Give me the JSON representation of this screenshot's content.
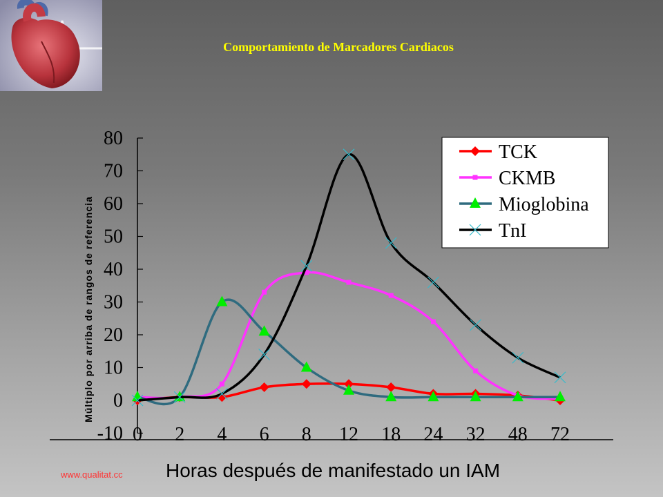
{
  "header": {
    "title": "Comportamiento de Marcadores Cardiacos",
    "logo_icon": "heart-illustration-icon"
  },
  "watermark": "www.qualitat.cc",
  "chart_data": {
    "type": "line",
    "title": "",
    "xlabel": "Horas después de manifestado un IAM",
    "ylabel": "Múltiplo por arriba de rangos de referencia",
    "categories": [
      "0",
      "2",
      "4",
      "6",
      "8",
      "12",
      "18",
      "24",
      "32",
      "48",
      "72"
    ],
    "ylim": [
      -10,
      80
    ],
    "yticks": [
      -10,
      0,
      10,
      20,
      30,
      40,
      50,
      60,
      70,
      80
    ],
    "legend_position": "top-right",
    "grid": false,
    "series": [
      {
        "name": "TCK",
        "color": "#ff0000",
        "marker": "diamond",
        "marker_color": "#ff0000",
        "values": [
          0,
          1,
          1,
          4,
          5,
          5,
          4,
          2,
          2,
          1.5,
          0
        ]
      },
      {
        "name": "CKMB",
        "color": "#ff33ff",
        "marker": "square",
        "marker_color": "#ff33ff",
        "values": [
          1,
          1,
          5,
          33,
          39,
          36,
          32,
          24,
          9,
          1.5,
          0.5
        ]
      },
      {
        "name": "Mioglobina",
        "color": "#2f6b7f",
        "marker": "triangle",
        "marker_color": "#00ee00",
        "values": [
          1,
          1,
          30,
          21,
          10,
          3,
          1,
          1,
          1,
          1,
          1
        ]
      },
      {
        "name": "TnI",
        "color": "#000000",
        "marker": "x",
        "marker_color": "#33bbcc",
        "values": [
          0,
          1,
          2,
          14,
          41,
          75,
          48,
          36,
          23,
          13,
          7
        ]
      }
    ]
  }
}
